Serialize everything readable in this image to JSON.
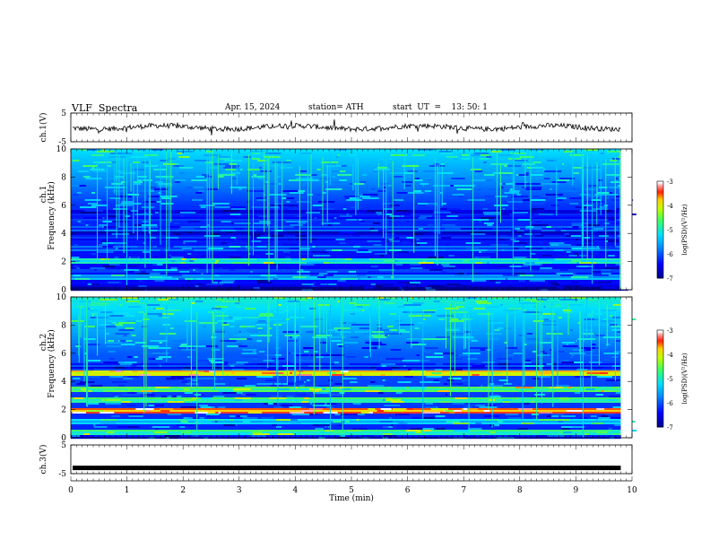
{
  "header": {
    "title": "VLF  Spectra",
    "date": "Apr. 15, 2024",
    "station": "station= ATH",
    "start": "start  UT  =    13: 50: 1"
  },
  "chart_data": {
    "type": "heatmap",
    "title": "VLF  Spectra",
    "xlabel": "Time  (min)",
    "xlim": [
      0,
      10
    ],
    "xticks": [
      "0",
      "1",
      "2",
      "3",
      "4",
      "5",
      "6",
      "7",
      "8",
      "9",
      "10"
    ],
    "data_end_min": 9.8,
    "panels": [
      {
        "id": "ch1-wave",
        "kind": "waveform",
        "ylabel": "ch.1(V)",
        "ylim": [
          -5,
          5
        ],
        "yticks": [
          "5",
          "-5"
        ],
        "baseline": 0
      },
      {
        "id": "ch1-spec",
        "kind": "spectrogram",
        "ylabel": "ch.1",
        "ylabel2": "Frequency  (kHz)",
        "ylim": [
          0,
          10
        ],
        "yticks": [
          "0",
          "2",
          "4",
          "6",
          "8",
          "10"
        ],
        "bands_khz": [
          {
            "f": 0.2,
            "level": -7
          },
          {
            "f": 0.5,
            "level": -6.6
          },
          {
            "f": 1.0,
            "level": -5.9
          },
          {
            "f": 1.4,
            "level": -6.3
          },
          {
            "f": 2.1,
            "level": -5.3
          },
          {
            "f": 3.0,
            "level": -6.2
          },
          {
            "f": 3.6,
            "level": -6.6
          },
          {
            "f": 4.1,
            "level": -6.9
          },
          {
            "f": 4.4,
            "level": -6.3
          },
          {
            "f": 5.2,
            "level": -6.6
          },
          {
            "f": 5.6,
            "level": -6.8
          }
        ],
        "colorbar": {
          "label": "log(PSD)(V²/Hz)",
          "ticks": [
            "-3",
            "-4",
            "-5",
            "-6",
            "-7"
          ],
          "range": [
            -7,
            -3
          ]
        }
      },
      {
        "id": "ch2-spec",
        "kind": "spectrogram",
        "ylabel": "ch.2",
        "ylabel2": "Frequency  (kHz)",
        "ylim": [
          0,
          10
        ],
        "yticks": [
          "0",
          "2",
          "4",
          "6",
          "8",
          "10"
        ],
        "bands_khz": [
          {
            "f": 0.4,
            "level": -5.2
          },
          {
            "f": 1.2,
            "level": -5.6
          },
          {
            "f": 2.0,
            "level": -3.8
          },
          {
            "f": 2.7,
            "level": -5.1
          },
          {
            "f": 3.5,
            "level": -4.9
          },
          {
            "f": 4.6,
            "level": -4.2
          },
          {
            "f": 5.1,
            "level": -6.8
          },
          {
            "f": 5.3,
            "level": -6.4
          }
        ],
        "colorbar": {
          "label": "log(PSD)(V²/Hz)",
          "ticks": [
            "-3",
            "-4",
            "-5",
            "-6",
            "-7"
          ],
          "range": [
            -7,
            -3
          ]
        }
      },
      {
        "id": "ch3-wave",
        "kind": "waveform",
        "ylabel": "ch.3(V)",
        "ylim": [
          -5,
          5
        ],
        "yticks": [
          "5",
          "-5"
        ],
        "baseline": -3
      }
    ]
  }
}
